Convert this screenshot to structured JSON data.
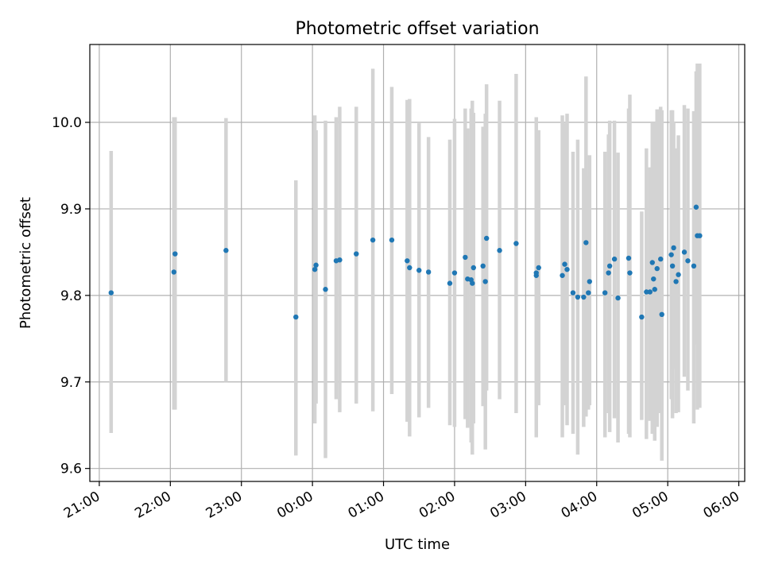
{
  "chart_data": {
    "type": "scatter",
    "title": "Photometric offset variation",
    "xlabel": "UTC time",
    "ylabel": "Photometric offset",
    "grid": true,
    "legend": "none",
    "x_axis": {
      "kind": "time",
      "range": [
        "20:52",
        "06:05"
      ],
      "ticks": [
        "21:00",
        "22:00",
        "23:00",
        "00:00",
        "01:00",
        "02:00",
        "03:00",
        "04:00",
        "05:00",
        "06:00"
      ]
    },
    "y_axis": {
      "range": [
        9.585,
        10.09
      ],
      "ticks": [
        "9.6",
        "9.7",
        "9.8",
        "9.9",
        "10.0"
      ]
    },
    "colors": {
      "point": "#1f77b4",
      "errorbar": "#d3d3d3",
      "grid": "#b0b0b0"
    },
    "series": [
      {
        "x": [
          "21:10",
          "22:03",
          "22:04",
          "22:47",
          "23:46",
          "00:02",
          "00:03",
          "00:11",
          "00:20",
          "00:23",
          "00:37",
          "00:51",
          "01:07",
          "01:20",
          "01:22",
          "01:30",
          "01:38",
          "01:56",
          "02:00",
          "02:09",
          "02:11",
          "02:14",
          "02:15",
          "02:16",
          "02:24",
          "02:26",
          "02:27",
          "02:38",
          "02:52",
          "03:09",
          "03:09",
          "03:11",
          "03:31",
          "03:33",
          "03:35",
          "03:40",
          "03:44",
          "03:49",
          "03:51",
          "03:53",
          "03:54",
          "04:07",
          "04:10",
          "04:11",
          "04:15",
          "04:18",
          "04:27",
          "04:28",
          "04:38",
          "04:42",
          "04:45",
          "04:47",
          "04:48",
          "04:49",
          "04:51",
          "04:54",
          "04:55",
          "05:03",
          "05:04",
          "05:05",
          "05:07",
          "05:09",
          "05:14",
          "05:17",
          "05:22",
          "05:24",
          "05:25",
          "05:27"
        ],
        "y": [
          9.803,
          9.827,
          9.848,
          9.852,
          9.775,
          9.83,
          9.835,
          9.807,
          9.84,
          9.841,
          9.848,
          9.864,
          9.864,
          9.84,
          9.832,
          9.829,
          9.827,
          9.814,
          9.826,
          9.844,
          9.819,
          9.818,
          9.814,
          9.832,
          9.834,
          9.816,
          9.866,
          9.852,
          9.86,
          9.823,
          9.826,
          9.832,
          9.823,
          9.836,
          9.83,
          9.803,
          9.798,
          9.798,
          9.861,
          9.803,
          9.816,
          9.803,
          9.826,
          9.834,
          9.842,
          9.797,
          9.843,
          9.826,
          9.775,
          9.804,
          9.804,
          9.838,
          9.819,
          9.807,
          9.831,
          9.842,
          9.778,
          9.847,
          9.834,
          9.855,
          9.816,
          9.824,
          9.85,
          9.84,
          9.834,
          9.902,
          9.869,
          9.869
        ],
        "y_low": [
          9.641,
          9.668,
          9.668,
          9.7,
          9.615,
          9.652,
          9.675,
          9.612,
          9.68,
          9.665,
          9.675,
          9.666,
          9.686,
          9.654,
          9.637,
          9.659,
          9.67,
          9.65,
          9.648,
          9.657,
          9.647,
          9.63,
          9.616,
          9.652,
          9.672,
          9.622,
          9.69,
          9.68,
          9.664,
          9.636,
          9.645,
          9.673,
          9.636,
          9.673,
          9.65,
          9.64,
          9.616,
          9.648,
          9.66,
          9.668,
          9.673,
          9.636,
          9.664,
          9.642,
          9.658,
          9.63,
          9.64,
          9.636,
          9.656,
          9.634,
          9.655,
          9.64,
          9.652,
          9.632,
          9.648,
          9.664,
          9.609,
          9.68,
          9.658,
          9.715,
          9.664,
          9.665,
          9.706,
          9.69,
          9.652,
          9.743,
          9.668,
          9.67
        ],
        "y_high": [
          9.967,
          10.006,
          10.006,
          10.005,
          9.933,
          10.008,
          9.991,
          10.002,
          10.006,
          10.018,
          10.018,
          10.062,
          10.041,
          10.026,
          10.027,
          9.999,
          9.983,
          9.98,
          10.004,
          10.016,
          9.993,
          10.016,
          10.025,
          10.011,
          9.995,
          10.01,
          10.044,
          10.025,
          10.056,
          10.006,
          10.003,
          9.991,
          10.008,
          9.999,
          10.01,
          9.966,
          9.98,
          9.947,
          10.053,
          9.939,
          9.962,
          9.966,
          9.986,
          10.002,
          10.002,
          9.965,
          10.016,
          10.032,
          9.897,
          9.97,
          9.948,
          10.0,
          9.986,
          10.0,
          10.015,
          10.018,
          10.014,
          10.014,
          10.014,
          10.0,
          9.97,
          9.985,
          10.02,
          10.016,
          10.013,
          10.059,
          10.068,
          10.068
        ]
      }
    ]
  }
}
